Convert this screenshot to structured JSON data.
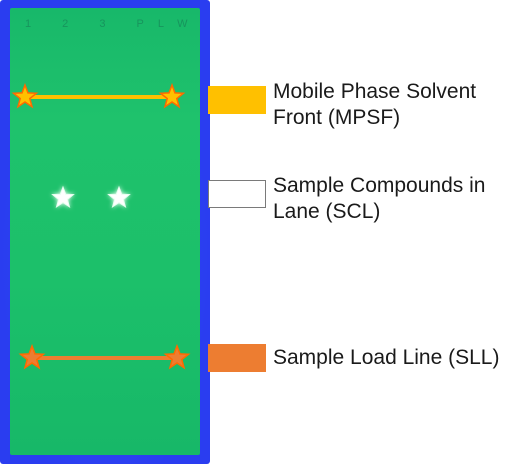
{
  "plate": {
    "lane_marks": "1  2  3  PLW"
  },
  "legend": [
    {
      "key": "mpsf",
      "label": "Mobile Phase Solvent\nFront (MPSF)",
      "color": "#ffc000"
    },
    {
      "key": "scl",
      "label": "Sample Compounds in\nLane (SCL)",
      "color": "#ffffff"
    },
    {
      "key": "sll",
      "label": "Sample Load Line (SLL)",
      "color": "#ed7d31"
    }
  ],
  "colors": {
    "frame": "#2a3df0",
    "plate": "#1cc06a",
    "mpsf": "#ffc000",
    "sll": "#ed7d31",
    "star_outline": "#ff6a00",
    "compound": "#ffffff"
  },
  "icons": {
    "mpsf_marker": "star-icon",
    "sll_marker": "star-icon",
    "compound_marker": "star-icon"
  }
}
